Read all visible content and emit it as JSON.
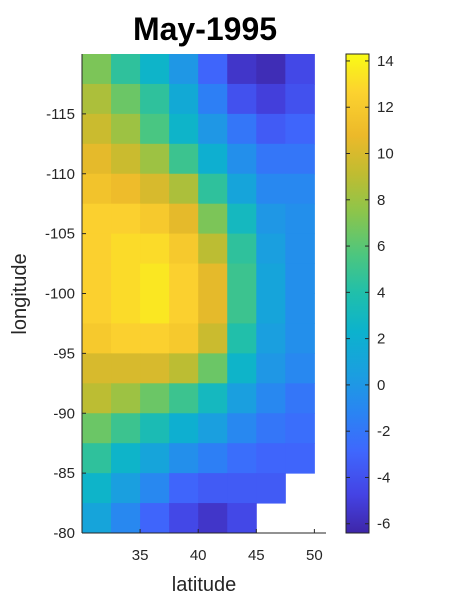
{
  "chart_data": {
    "type": "heatmap",
    "title": "May-1995",
    "xlabel": "latitude",
    "ylabel": "longitude",
    "x_ticks": [
      "35",
      "40",
      "45",
      "50"
    ],
    "y_ticks": [
      "-115",
      "-110",
      "-105",
      "-100",
      "-95",
      "-90",
      "-85",
      "-80"
    ],
    "colorbar_ticks": [
      "14",
      "12",
      "10",
      "8",
      "6",
      "4",
      "2",
      "0",
      "-2",
      "-4",
      "-6"
    ],
    "x_centers": [
      31.25,
      33.75,
      36.25,
      38.75,
      41.25,
      43.75,
      46.25,
      48.75
    ],
    "y_centers": [
      -118.75,
      -116.25,
      -113.75,
      -111.25,
      -108.75,
      -106.25,
      -103.75,
      -101.25,
      -98.75,
      -96.25,
      -93.75,
      -91.25,
      -88.75,
      -86.25,
      -83.75,
      -81.25
    ],
    "xlim": [
      30,
      51
    ],
    "ylim": [
      -120,
      -80
    ],
    "clim": [
      -6.4,
      14.3
    ],
    "colormap": "parula",
    "values": [
      [
        7.0,
        4.5,
        2.5,
        0.0,
        -3.0,
        -5.5,
        -6.0,
        -4.5
      ],
      [
        8.5,
        6.5,
        4.5,
        1.5,
        -1.5,
        -4.0,
        -5.0,
        -4.0
      ],
      [
        9.5,
        8.0,
        5.5,
        2.5,
        0.0,
        -2.0,
        -3.5,
        -3.0
      ],
      [
        10.5,
        9.5,
        8.0,
        5.0,
        2.0,
        -0.5,
        -2.0,
        -2.0
      ],
      [
        11.5,
        11.0,
        10.0,
        8.5,
        4.5,
        1.0,
        -1.0,
        -1.0
      ],
      [
        12.5,
        12.5,
        12.0,
        10.5,
        7.0,
        3.0,
        0.0,
        -0.5
      ],
      [
        12.5,
        13.0,
        13.0,
        12.0,
        9.0,
        4.5,
        0.5,
        -0.5
      ],
      [
        12.5,
        13.0,
        13.5,
        12.5,
        10.5,
        5.0,
        1.0,
        -0.5
      ],
      [
        12.5,
        13.0,
        13.5,
        12.5,
        10.5,
        5.0,
        1.0,
        -0.5
      ],
      [
        12.0,
        12.5,
        12.5,
        12.0,
        9.5,
        4.0,
        0.5,
        -0.5
      ],
      [
        10.0,
        10.0,
        10.0,
        9.0,
        6.5,
        2.5,
        0.0,
        -1.0
      ],
      [
        9.0,
        8.0,
        6.5,
        5.0,
        3.0,
        0.5,
        -1.0,
        -2.0
      ],
      [
        6.5,
        5.0,
        3.5,
        2.0,
        0.5,
        -1.0,
        -2.0,
        -2.5
      ],
      [
        4.5,
        2.5,
        1.0,
        -0.5,
        -1.5,
        -2.5,
        -3.0,
        -3.0
      ],
      [
        2.5,
        0.5,
        -1.0,
        -3.0,
        -3.5,
        -3.5,
        -3.5,
        null
      ],
      [
        1.0,
        -1.0,
        -3.0,
        -4.5,
        -5.5,
        -4.5,
        null,
        null
      ]
    ]
  }
}
